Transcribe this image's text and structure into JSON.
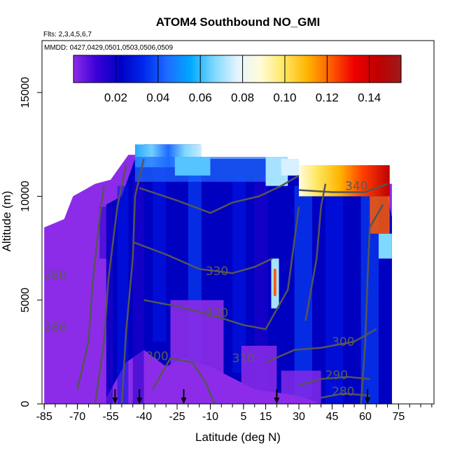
{
  "chart_data": {
    "type": "heatmap",
    "title": "ATOM4 Southbound NO_GMI",
    "subtitle_flights": "Flts: 2,3,4,5,6,7",
    "subtitle_dates": "MMDD: 0427,0429,0501,0503,0506,0509",
    "xlabel": "Latitude (deg N)",
    "ylabel": "Altitude (m)",
    "xlim": [
      -86,
      91
    ],
    "ylim": [
      0,
      17500
    ],
    "x_ticks": [
      "-85",
      "-70",
      "-55",
      "-40",
      "-25",
      "-10",
      "5",
      "15",
      "30",
      "45",
      "60",
      "75"
    ],
    "x_tick_values": [
      -85,
      -70,
      -55,
      -40,
      -25,
      -10,
      5,
      15,
      30,
      45,
      60,
      75
    ],
    "y_ticks": [
      "0",
      "5000",
      "10000",
      "15000"
    ],
    "y_tick_values": [
      0,
      5000,
      10000,
      15000
    ],
    "colorbar": {
      "range": [
        0.0,
        0.155
      ],
      "tick_labels": [
        "0.02",
        "0.04",
        "0.06",
        "0.08",
        "0.10",
        "0.12",
        "0.14"
      ],
      "tick_values": [
        0.02,
        0.04,
        0.06,
        0.08,
        0.1,
        0.12,
        0.14
      ],
      "colors": [
        "#8c2ce8",
        "#3a00d6",
        "#0000c4",
        "#0028ee",
        "#1e6cff",
        "#00a8ff",
        "#7ed8ff",
        "#e4f4ff",
        "#fffcd8",
        "#ffe760",
        "#ffb400",
        "#ff5a00",
        "#ee0000",
        "#c00000",
        "#9e1a1a"
      ]
    },
    "theta_contours": [
      {
        "label": "280",
        "lat": -80,
        "alt": 6000
      },
      {
        "label": "280",
        "lat": -80,
        "alt": 3500
      },
      {
        "label": "300",
        "lat": -34,
        "alt": 2100
      },
      {
        "label": "310",
        "lat": 5,
        "alt": 2000
      },
      {
        "label": "320",
        "lat": -7,
        "alt": 4200
      },
      {
        "label": "330",
        "lat": -7,
        "alt": 6200
      },
      {
        "label": "340",
        "lat": 56,
        "alt": 10300
      },
      {
        "label": "300",
        "lat": 50,
        "alt": 2800
      },
      {
        "label": "290",
        "lat": 47,
        "alt": 1200
      },
      {
        "label": "280",
        "lat": 50,
        "alt": 400
      }
    ],
    "flight_markers_lat": [
      -53,
      -42,
      -22,
      20,
      61
    ],
    "features": [
      {
        "description": "Upper-troposphere NO maximum",
        "lat_range": [
          40,
          72
        ],
        "alt_range": [
          10000,
          11800
        ],
        "peak_value": 0.15
      },
      {
        "description": "Light-blue layer near tropopause",
        "lat_range": [
          -44,
          25
        ],
        "alt_range": [
          10500,
          12500
        ],
        "value": 0.05
      },
      {
        "description": "Narrow convective plume",
        "lat": 19,
        "alt_range": [
          4500,
          7000
        ],
        "peak_value": 0.11
      }
    ]
  }
}
